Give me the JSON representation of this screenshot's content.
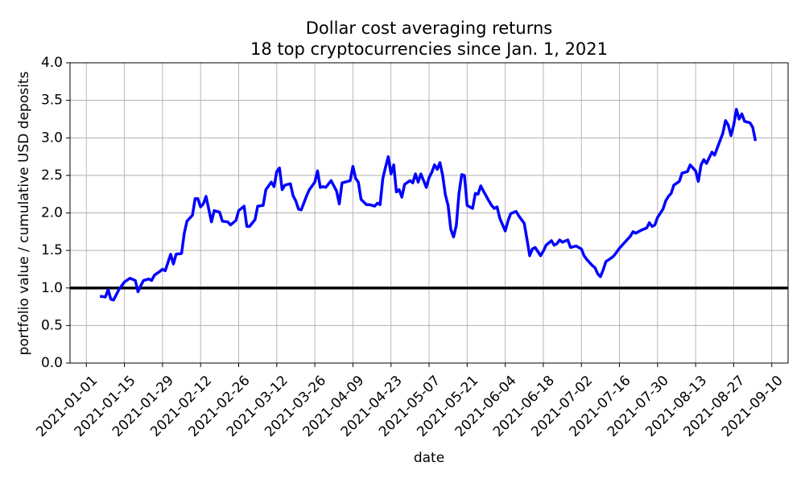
{
  "chart_data": {
    "type": "line",
    "title": "Dollar cost averaging returns",
    "subtitle": "18 top cryptocurrencies since Jan. 1, 2021",
    "x_label": "date",
    "y_label": "portfolio value / cumulative USD deposits",
    "grid": true,
    "xlim": [
      "2020-12-26",
      "2021-09-16"
    ],
    "xticks": [
      "2021-01-01",
      "2021-01-15",
      "2021-01-29",
      "2021-02-12",
      "2021-02-26",
      "2021-03-12",
      "2021-03-26",
      "2021-04-09",
      "2021-04-23",
      "2021-05-07",
      "2021-05-21",
      "2021-06-04",
      "2021-06-18",
      "2021-07-02",
      "2021-07-16",
      "2021-07-30",
      "2021-08-13",
      "2021-08-27",
      "2021-09-10"
    ],
    "ylim": [
      0,
      4
    ],
    "yticks": [
      {
        "value": 0,
        "label": "0.0"
      },
      0.5,
      {
        "value": 1,
        "label": "1.0"
      },
      1.5,
      {
        "value": 2,
        "label": "2.0"
      },
      2.5,
      {
        "value": 3,
        "label": "3.0"
      },
      3.5,
      {
        "value": 4,
        "label": "4.0"
      }
    ],
    "hline": {
      "value": 1.0,
      "color": "#000000"
    },
    "x": [
      "2021-01-06",
      "2021-01-08",
      "2021-01-09",
      "2021-01-10",
      "2021-01-11",
      "2021-01-13",
      "2021-01-14",
      "2021-01-15",
      "2021-01-17",
      "2021-01-19",
      "2021-01-20",
      "2021-01-21",
      "2021-01-22",
      "2021-01-24",
      "2021-01-25",
      "2021-01-26",
      "2021-01-28",
      "2021-01-29",
      "2021-01-30",
      "2021-01-31",
      "2021-02-01",
      "2021-02-02",
      "2021-02-03",
      "2021-02-05",
      "2021-02-06",
      "2021-02-07",
      "2021-02-09",
      "2021-02-10",
      "2021-02-11",
      "2021-02-12",
      "2021-02-13",
      "2021-02-14",
      "2021-02-16",
      "2021-02-17",
      "2021-02-19",
      "2021-02-20",
      "2021-02-22",
      "2021-02-23",
      "2021-02-25",
      "2021-02-26",
      "2021-02-28",
      "2021-03-01",
      "2021-03-02",
      "2021-03-04",
      "2021-03-05",
      "2021-03-07",
      "2021-03-08",
      "2021-03-10",
      "2021-03-11",
      "2021-03-12",
      "2021-03-13",
      "2021-03-14",
      "2021-03-15",
      "2021-03-17",
      "2021-03-18",
      "2021-03-19",
      "2021-03-20",
      "2021-03-21",
      "2021-03-23",
      "2021-03-24",
      "2021-03-26",
      "2021-03-27",
      "2021-03-28",
      "2021-03-29",
      "2021-03-30",
      "2021-04-01",
      "2021-04-02",
      "2021-04-03",
      "2021-04-04",
      "2021-04-05",
      "2021-04-06",
      "2021-04-08",
      "2021-04-09",
      "2021-04-10",
      "2021-04-11",
      "2021-04-12",
      "2021-04-14",
      "2021-04-15",
      "2021-04-17",
      "2021-04-18",
      "2021-04-19",
      "2021-04-20",
      "2021-04-21",
      "2021-04-22",
      "2021-04-23",
      "2021-04-24",
      "2021-04-25",
      "2021-04-26",
      "2021-04-27",
      "2021-04-28",
      "2021-04-30",
      "2021-05-01",
      "2021-05-02",
      "2021-05-03",
      "2021-05-04",
      "2021-05-06",
      "2021-05-07",
      "2021-05-08",
      "2021-05-09",
      "2021-05-10",
      "2021-05-11",
      "2021-05-12",
      "2021-05-13",
      "2021-05-14",
      "2021-05-15",
      "2021-05-16",
      "2021-05-17",
      "2021-05-18",
      "2021-05-19",
      "2021-05-20",
      "2021-05-21",
      "2021-05-23",
      "2021-05-24",
      "2021-05-25",
      "2021-05-26",
      "2021-05-27",
      "2021-05-29",
      "2021-05-30",
      "2021-05-31",
      "2021-06-01",
      "2021-06-02",
      "2021-06-04",
      "2021-06-05",
      "2021-06-06",
      "2021-06-08",
      "2021-06-09",
      "2021-06-11",
      "2021-06-12",
      "2021-06-13",
      "2021-06-14",
      "2021-06-15",
      "2021-06-17",
      "2021-06-18",
      "2021-06-19",
      "2021-06-21",
      "2021-06-22",
      "2021-06-23",
      "2021-06-24",
      "2021-06-25",
      "2021-06-27",
      "2021-06-28",
      "2021-06-30",
      "2021-07-02",
      "2021-07-03",
      "2021-07-04",
      "2021-07-06",
      "2021-07-07",
      "2021-07-08",
      "2021-07-09",
      "2021-07-10",
      "2021-07-11",
      "2021-07-13",
      "2021-07-14",
      "2021-07-16",
      "2021-07-18",
      "2021-07-20",
      "2021-07-21",
      "2021-07-22",
      "2021-07-24",
      "2021-07-26",
      "2021-07-27",
      "2021-07-28",
      "2021-07-29",
      "2021-07-30",
      "2021-08-01",
      "2021-08-02",
      "2021-08-03",
      "2021-08-04",
      "2021-08-05",
      "2021-08-07",
      "2021-08-08",
      "2021-08-10",
      "2021-08-11",
      "2021-08-13",
      "2021-08-14",
      "2021-08-15",
      "2021-08-16",
      "2021-08-17",
      "2021-08-19",
      "2021-08-20",
      "2021-08-21",
      "2021-08-23",
      "2021-08-24",
      "2021-08-25",
      "2021-08-26",
      "2021-08-27",
      "2021-08-28",
      "2021-08-29",
      "2021-08-30",
      "2021-08-31",
      "2021-09-02",
      "2021-09-03",
      "2021-09-04"
    ],
    "series": [
      {
        "name": "portfolio",
        "color": "#0000ff",
        "values": [
          0.89,
          0.88,
          0.98,
          0.85,
          0.84,
          0.98,
          1.03,
          1.08,
          1.13,
          1.1,
          0.95,
          1.03,
          1.1,
          1.12,
          1.1,
          1.17,
          1.22,
          1.25,
          1.23,
          1.34,
          1.45,
          1.32,
          1.45,
          1.46,
          1.73,
          1.89,
          1.97,
          2.19,
          2.19,
          2.08,
          2.12,
          2.22,
          1.88,
          2.03,
          2.01,
          1.89,
          1.88,
          1.84,
          1.9,
          2.03,
          2.09,
          1.82,
          1.82,
          1.91,
          2.09,
          2.1,
          2.31,
          2.41,
          2.35,
          2.55,
          2.6,
          2.31,
          2.37,
          2.39,
          2.23,
          2.16,
          2.05,
          2.04,
          2.23,
          2.31,
          2.41,
          2.56,
          2.34,
          2.35,
          2.34,
          2.43,
          2.36,
          2.29,
          2.12,
          2.4,
          2.41,
          2.43,
          2.62,
          2.46,
          2.41,
          2.18,
          2.11,
          2.11,
          2.09,
          2.13,
          2.11,
          2.46,
          2.61,
          2.75,
          2.52,
          2.64,
          2.28,
          2.31,
          2.21,
          2.38,
          2.43,
          2.4,
          2.52,
          2.41,
          2.52,
          2.34,
          2.47,
          2.54,
          2.64,
          2.58,
          2.67,
          2.5,
          2.24,
          2.1,
          1.78,
          1.68,
          1.83,
          2.26,
          2.51,
          2.5,
          2.1,
          2.06,
          2.26,
          2.25,
          2.36,
          2.29,
          2.16,
          2.1,
          2.06,
          2.08,
          1.93,
          1.76,
          1.89,
          1.99,
          2.02,
          1.96,
          1.86,
          1.65,
          1.43,
          1.52,
          1.54,
          1.43,
          1.49,
          1.57,
          1.63,
          1.57,
          1.59,
          1.64,
          1.61,
          1.64,
          1.54,
          1.56,
          1.52,
          1.43,
          1.38,
          1.3,
          1.27,
          1.19,
          1.15,
          1.24,
          1.35,
          1.4,
          1.43,
          1.53,
          1.61,
          1.69,
          1.75,
          1.73,
          1.77,
          1.8,
          1.87,
          1.82,
          1.84,
          1.94,
          2.05,
          2.16,
          2.22,
          2.26,
          2.37,
          2.42,
          2.53,
          2.55,
          2.64,
          2.56,
          2.42,
          2.64,
          2.71,
          2.66,
          2.81,
          2.77,
          2.87,
          3.06,
          3.23,
          3.17,
          3.03,
          3.17,
          3.38,
          3.25,
          3.32,
          3.22,
          3.2,
          3.14,
          2.96
        ]
      }
    ]
  }
}
